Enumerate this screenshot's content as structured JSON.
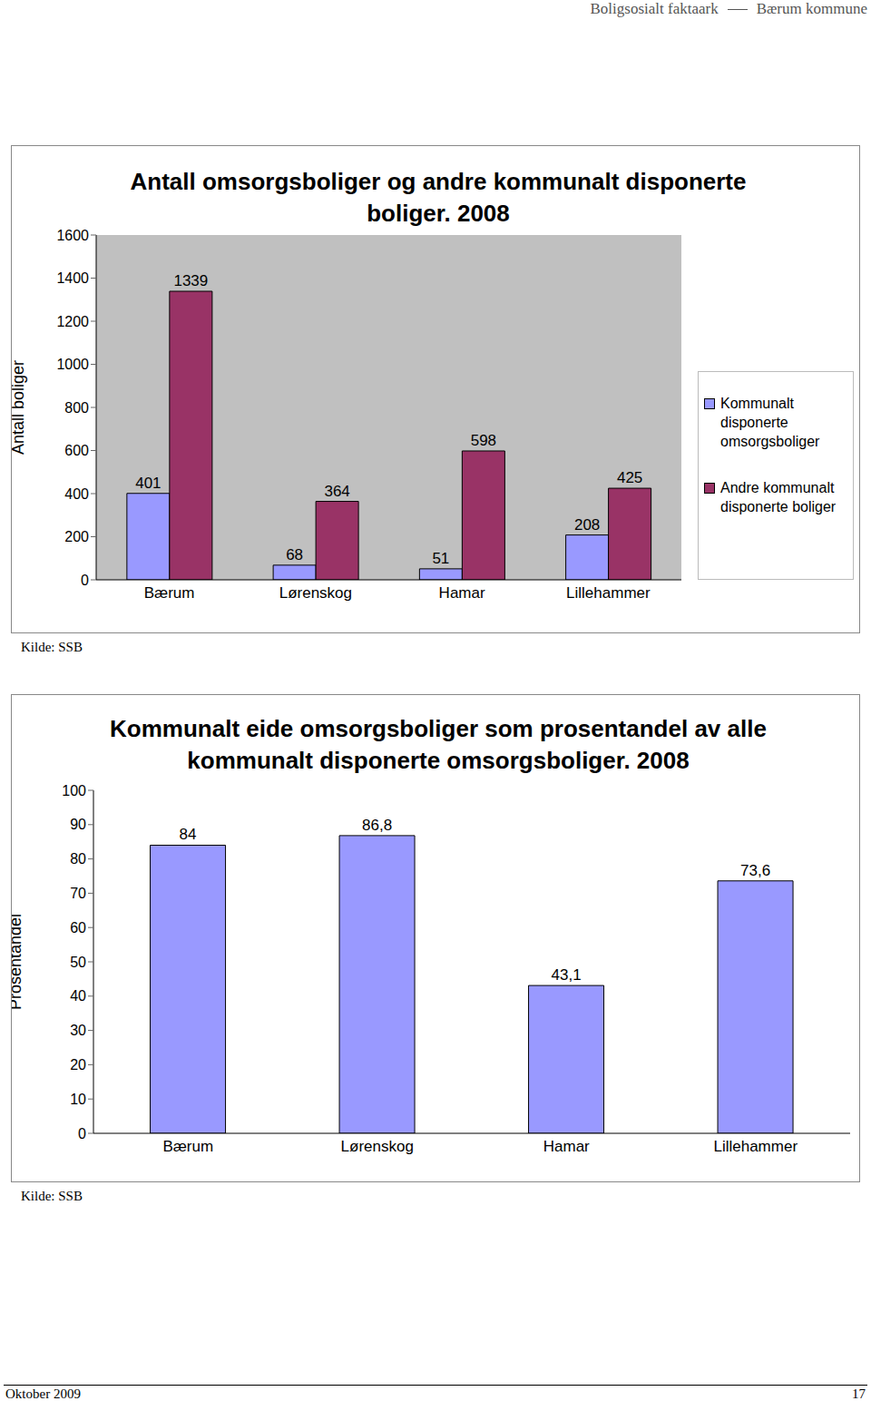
{
  "page": {
    "header": [
      "Boligsosialt faktaark",
      "Bærum kommune"
    ],
    "footer": [
      "Oktober 2009",
      "17"
    ]
  },
  "chart_data": [
    {
      "type": "bar",
      "title": "Antall omsorgsboliger og andre kommunalt disponerte boliger. 2008",
      "ylabel": "Antall boliger",
      "categories": [
        "Bærum",
        "Lørenskog",
        "Hamar",
        "Lillehammer"
      ],
      "series": [
        {
          "name": "Kommunalt disponerte omsorgsboliger",
          "color": "#9999ff",
          "values": [
            401,
            68,
            51,
            208
          ]
        },
        {
          "name": "Andre kommunalt disponerte boliger",
          "color": "#993366",
          "values": [
            1339,
            364,
            598,
            425
          ]
        }
      ],
      "ylim": [
        0,
        1600
      ],
      "yticks": [
        0,
        200,
        400,
        600,
        800,
        1000,
        1200,
        1400,
        1600
      ],
      "grid": false,
      "legend": "right",
      "data_labels": true,
      "source": "Kilde: SSB"
    },
    {
      "type": "bar",
      "title": "Kommunalt eide omsorgsboliger som prosentandel av alle kommunalt disponerte omsorgsboliger. 2008",
      "ylabel": "Prosentandel",
      "categories": [
        "Bærum",
        "Lørenskog",
        "Hamar",
        "Lillehammer"
      ],
      "values": [
        84,
        86.8,
        43.1,
        73.6
      ],
      "value_labels": [
        "84",
        "86,8",
        "43,1",
        "73,6"
      ],
      "color": "#9999ff",
      "ylim": [
        0,
        100
      ],
      "yticks": [
        0,
        10,
        20,
        30,
        40,
        50,
        60,
        70,
        80,
        90,
        100
      ],
      "grid": false,
      "data_labels": true,
      "source": "Kilde: SSB"
    }
  ]
}
